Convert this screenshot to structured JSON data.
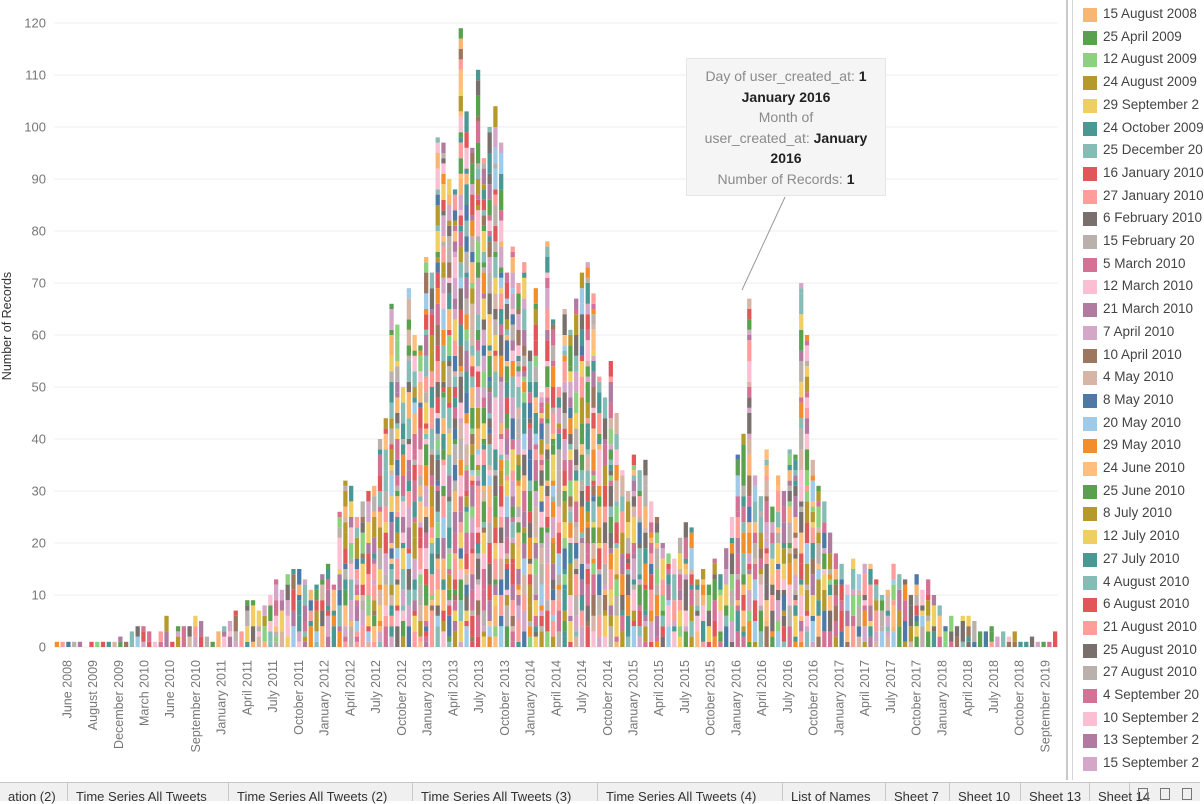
{
  "chart_data": {
    "type": "bar",
    "stacked": true,
    "ylabel": "Number of Records",
    "ylim": [
      0,
      125
    ],
    "yticks": [
      0,
      10,
      20,
      30,
      40,
      50,
      60,
      70,
      80,
      90,
      100,
      110,
      120
    ],
    "grid": true,
    "x_tick_labels": [
      "June 2008",
      "August 2009",
      "December 2009",
      "March 2010",
      "June 2010",
      "September 2010",
      "January 2011",
      "April 2011",
      "July 2011",
      "October 2011",
      "January 2012",
      "April 2012",
      "July 2012",
      "October 2012",
      "January 2013",
      "April 2013",
      "July 2013",
      "October 2013",
      "January 2014",
      "April 2014",
      "July 2014",
      "October 2014",
      "January 2015",
      "April 2015",
      "July 2015",
      "October 2015",
      "January 2016",
      "April 2016",
      "July 2016",
      "October 2016",
      "January 2017",
      "April 2017",
      "July 2017",
      "October 2017",
      "January 2018",
      "April 2018",
      "July 2018",
      "October 2018",
      "September 2019"
    ],
    "totals": [
      1,
      1,
      1,
      1,
      1,
      0,
      1,
      1,
      1,
      1,
      1,
      2,
      1,
      3,
      4,
      4,
      3,
      1,
      3,
      6,
      1,
      4,
      4,
      4,
      6,
      5,
      2,
      1,
      3,
      4,
      5,
      7,
      3,
      9,
      9,
      7,
      8,
      10,
      13,
      11,
      14,
      15,
      15,
      13,
      11,
      12,
      14,
      16,
      12,
      26,
      32,
      31,
      25,
      28,
      30,
      31,
      40,
      44,
      66,
      62,
      50,
      69,
      60,
      58,
      75,
      72,
      98,
      97,
      90,
      88,
      119,
      103,
      96,
      111,
      94,
      100,
      104,
      97,
      72,
      77,
      70,
      74,
      57,
      69,
      49,
      78,
      63,
      50,
      65,
      61,
      67,
      72,
      74,
      68,
      52,
      48,
      55,
      45,
      34,
      30,
      37,
      34,
      36,
      28,
      25,
      20,
      18,
      17,
      21,
      24,
      23,
      13,
      15,
      12,
      17,
      14,
      19,
      25,
      37,
      41,
      67,
      33,
      29,
      38,
      27,
      33,
      30,
      38,
      37,
      70,
      60,
      36,
      31,
      28,
      22,
      18,
      16,
      12,
      17,
      14,
      16,
      16,
      13,
      10,
      11,
      16,
      14,
      13,
      10,
      14,
      11,
      13,
      10,
      8,
      4,
      6,
      4,
      6,
      6,
      5,
      3,
      3,
      4,
      2,
      3,
      2,
      3,
      1,
      1,
      2,
      1,
      1,
      1,
      3
    ],
    "legend_title": "",
    "series_labels": [
      "15 August 2008",
      "25 April 2009",
      "12 August 2009",
      "24 August 2009",
      "29 September 2",
      "24 October 2009",
      "25 December 20",
      "16 January 2010",
      "27 January 2010",
      "6 February 2010",
      "15 February 20",
      "5 March 2010",
      "12 March 2010",
      "21 March 2010",
      "7 April 2010",
      "10 April 2010",
      "4 May 2010",
      "8 May 2010",
      "20 May 2010",
      "29 May 2010",
      "24 June 2010",
      "25 June 2010",
      "8 July 2010",
      "12 July 2010",
      "27 July 2010",
      "4 August 2010",
      "6 August 2010",
      "21 August 2010",
      "25 August 2010",
      "27 August 2010",
      "4 September 20",
      "10 September 2",
      "13 September 2",
      "15 September 2"
    ]
  },
  "legend": {
    "items": [
      {
        "label": "15 August 2008",
        "color": "#f9b572"
      },
      {
        "label": "25 April 2009",
        "color": "#59a14f"
      },
      {
        "label": "12 August 2009",
        "color": "#8cd17d"
      },
      {
        "label": "24 August 2009",
        "color": "#b6992d"
      },
      {
        "label": "29 September 2",
        "color": "#f1ce63"
      },
      {
        "label": "24 October 2009",
        "color": "#499894"
      },
      {
        "label": "25 December 20",
        "color": "#86bcb6"
      },
      {
        "label": "16 January 2010",
        "color": "#e15759"
      },
      {
        "label": "27 January 2010",
        "color": "#ff9d9a"
      },
      {
        "label": "6 February 2010",
        "color": "#79706e"
      },
      {
        "label": "15 February 20",
        "color": "#bab0ac"
      },
      {
        "label": "5 March 2010",
        "color": "#d37295"
      },
      {
        "label": "12 March 2010",
        "color": "#fabfd2"
      },
      {
        "label": "21 March 2010",
        "color": "#b07aa1"
      },
      {
        "label": "7 April 2010",
        "color": "#d4a6c8"
      },
      {
        "label": "10 April 2010",
        "color": "#9d7660"
      },
      {
        "label": "4 May 2010",
        "color": "#d7b5a6"
      },
      {
        "label": "8 May 2010",
        "color": "#4e79a7"
      },
      {
        "label": "20 May 2010",
        "color": "#a0cbe8"
      },
      {
        "label": "29 May 2010",
        "color": "#f28e2b"
      },
      {
        "label": "24 June 2010",
        "color": "#ffbe7d"
      },
      {
        "label": "25 June 2010",
        "color": "#59a14f"
      },
      {
        "label": "8 July 2010",
        "color": "#b6992d"
      },
      {
        "label": "12 July 2010",
        "color": "#f1ce63"
      },
      {
        "label": "27 July 2010",
        "color": "#499894"
      },
      {
        "label": "4 August 2010",
        "color": "#86bcb6"
      },
      {
        "label": "6 August 2010",
        "color": "#e15759"
      },
      {
        "label": "21 August 2010",
        "color": "#ff9d9a"
      },
      {
        "label": "25 August 2010",
        "color": "#79706e"
      },
      {
        "label": "27 August 2010",
        "color": "#bab0ac"
      },
      {
        "label": "4 September 20",
        "color": "#d37295"
      },
      {
        "label": "10 September 2",
        "color": "#fabfd2"
      },
      {
        "label": "13 September 2",
        "color": "#b07aa1"
      },
      {
        "label": "15 September 2",
        "color": "#d4a6c8"
      }
    ]
  },
  "tooltip": {
    "line1_key": "Day of user_created_at: ",
    "line1_val": "1",
    "line2_val": "January 2016",
    "line3_key": "Month of",
    "line4_key": "user_created_at: ",
    "line4_val": "January",
    "line5_val": "2016",
    "line6_key": "Number of Records: ",
    "line6_val": "1"
  },
  "tabs": [
    {
      "label": "ation (2)"
    },
    {
      "label": "Time Series All Tweets"
    },
    {
      "label": "Time Series All Tweets (2)"
    },
    {
      "label": "Time Series All Tweets (3)"
    },
    {
      "label": "Time Series All Tweets (4)"
    },
    {
      "label": "List of Names"
    },
    {
      "label": "Sheet 7"
    },
    {
      "label": "Sheet 10"
    },
    {
      "label": "Sheet 13"
    },
    {
      "label": "Sheet 14"
    }
  ]
}
